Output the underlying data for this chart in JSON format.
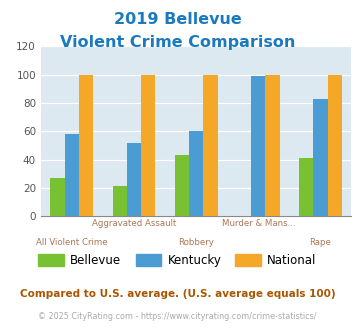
{
  "title_line1": "2019 Bellevue",
  "title_line2": "Violent Crime Comparison",
  "title_color": "#1a7abf",
  "top_labels": [
    "",
    "Aggravated Assault",
    "",
    "Murder & Mans...",
    ""
  ],
  "bottom_labels": [
    "All Violent Crime",
    "",
    "Robbery",
    "",
    "Rape"
  ],
  "bellevue_values": [
    27,
    21,
    43,
    0,
    41
  ],
  "kentucky_values": [
    58,
    52,
    60,
    99,
    83
  ],
  "national_values": [
    100,
    100,
    100,
    100,
    100
  ],
  "bellevue_color": "#77c132",
  "kentucky_color": "#4b9cd3",
  "national_color": "#f5a828",
  "ylim": [
    0,
    120
  ],
  "yticks": [
    0,
    20,
    40,
    60,
    80,
    100,
    120
  ],
  "plot_bg_color": "#dce9f0",
  "legend_labels": [
    "Bellevue",
    "Kentucky",
    "National"
  ],
  "label_color": "#aa7755",
  "footnote1": "Compared to U.S. average. (U.S. average equals 100)",
  "footnote2": "© 2025 CityRating.com - https://www.cityrating.com/crime-statistics/",
  "footnote1_color": "#aa5500",
  "footnote2_color": "#aaaaaa",
  "footnote2_link_color": "#4488cc"
}
